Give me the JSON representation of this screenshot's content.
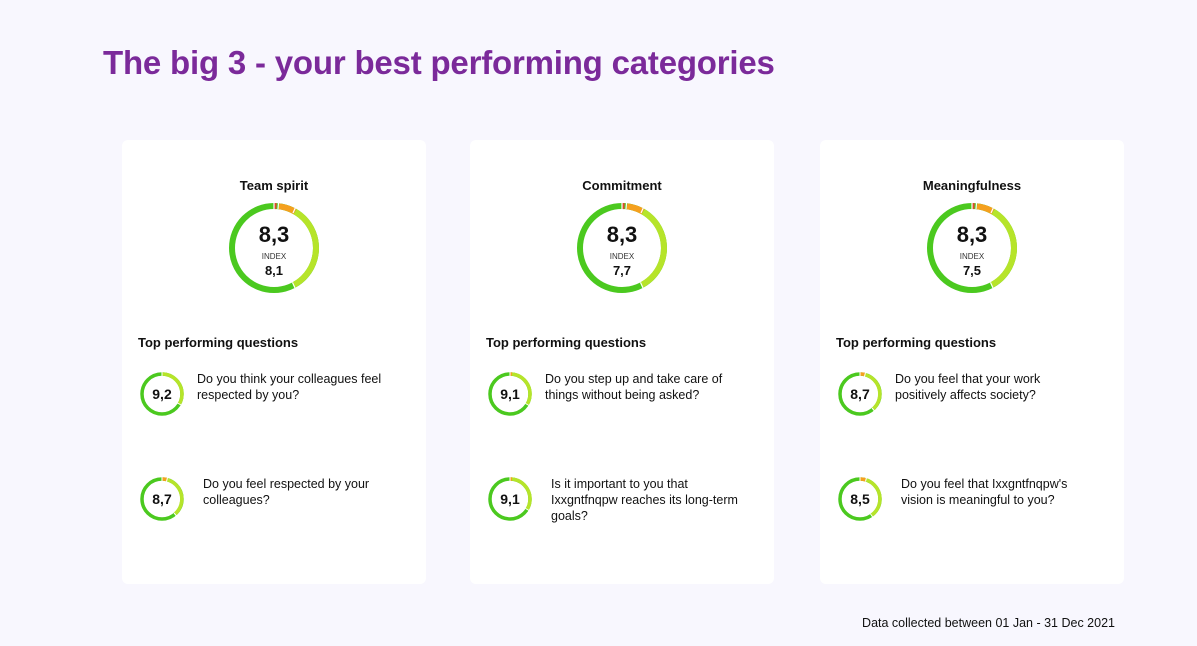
{
  "page": {
    "title": "The big 3 - your best performing categories",
    "footer": "Data collected between 01 Jan - 31 Dec 2021"
  },
  "colors": {
    "title": "#7b2a9a",
    "green": "#4bc91f",
    "lime": "#b6e42a",
    "orange": "#f5a01e",
    "red": "#e04a2c"
  },
  "cards": [
    {
      "title": "Team spirit",
      "score": "8,3",
      "index_label": "INDEX",
      "index_value": "8,1",
      "section_label": "Top performing questions",
      "questions": [
        {
          "score": "9,2",
          "text": "Do you think your colleagues feel respected by you?"
        },
        {
          "score": "8,7",
          "text": "Do you feel respected by your colleagues?"
        }
      ]
    },
    {
      "title": "Commitment",
      "score": "8,3",
      "index_label": "INDEX",
      "index_value": "7,7",
      "section_label": "Top performing questions",
      "questions": [
        {
          "score": "9,1",
          "text": "Do you step up and take care of things without being asked?"
        },
        {
          "score": "9,1",
          "text": "Is it important to you that Ixxgntfnqpw reaches its long-term goals?"
        }
      ]
    },
    {
      "title": "Meaningfulness",
      "score": "8,3",
      "index_label": "INDEX",
      "index_value": "7,5",
      "section_label": "Top performing questions",
      "questions": [
        {
          "score": "8,7",
          "text": "Do you feel that your work positively affects society?"
        },
        {
          "score": "8,5",
          "text": "Do you feel that Ixxgntfnqpw's vision is meaningful to you?"
        }
      ]
    }
  ]
}
